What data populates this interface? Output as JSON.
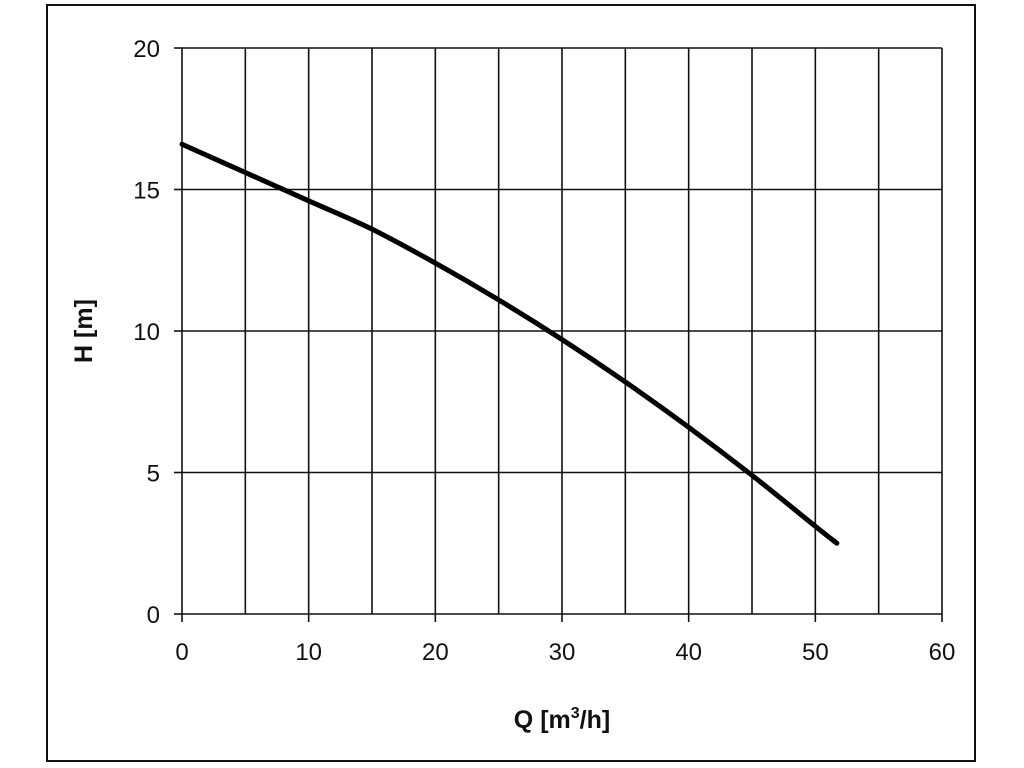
{
  "chart_data": {
    "type": "line",
    "title": "",
    "xlabel": "Q [m³/h]",
    "ylabel": "H [m]",
    "xlim": [
      0,
      60
    ],
    "ylim": [
      0,
      20
    ],
    "x_ticks": [
      0,
      10,
      20,
      30,
      40,
      50,
      60
    ],
    "y_ticks": [
      0,
      5,
      10,
      15,
      20
    ],
    "x_gridlines_every": 5,
    "y_gridlines_every": 5,
    "grid": true,
    "legend": "none",
    "series": [
      {
        "x": [
          0,
          5,
          10,
          15,
          20,
          25,
          30,
          35,
          40,
          45,
          50,
          51.7
        ],
        "y": [
          16.6,
          15.6,
          14.6,
          13.6,
          12.4,
          11.1,
          9.7,
          8.2,
          6.6,
          4.9,
          3.1,
          2.5
        ],
        "color": "#000000"
      }
    ]
  }
}
